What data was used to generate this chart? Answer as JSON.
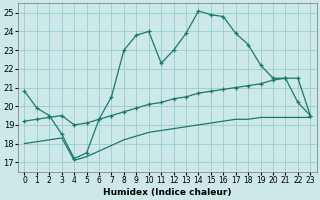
{
  "xlabel": "Humidex (Indice chaleur)",
  "bg_color": "#cce8e8",
  "grid_color": "#99cccc",
  "line_color": "#1a7a6a",
  "xlim": [
    -0.5,
    23.5
  ],
  "ylim": [
    16.5,
    25.5
  ],
  "xticks": [
    0,
    1,
    2,
    3,
    4,
    5,
    6,
    7,
    8,
    9,
    10,
    11,
    12,
    13,
    14,
    15,
    16,
    17,
    18,
    19,
    20,
    21,
    22,
    23
  ],
  "yticks": [
    17,
    18,
    19,
    20,
    21,
    22,
    23,
    24,
    25
  ],
  "line1_x": [
    0,
    1,
    2,
    3,
    4,
    5,
    6,
    7,
    8,
    9,
    10,
    11,
    12,
    13,
    14,
    15,
    16,
    17,
    18,
    19,
    20,
    21,
    22,
    23
  ],
  "line1_y": [
    20.8,
    19.9,
    19.5,
    18.5,
    17.2,
    17.5,
    19.3,
    20.5,
    23.0,
    23.8,
    24.0,
    22.3,
    23.0,
    23.9,
    25.1,
    24.9,
    24.8,
    23.9,
    23.3,
    22.2,
    21.5,
    21.5,
    20.2,
    19.5
  ],
  "line2_x": [
    0,
    1,
    2,
    3,
    4,
    5,
    6,
    7,
    8,
    9,
    10,
    11,
    12,
    13,
    14,
    15,
    16,
    17,
    18,
    19,
    20,
    21,
    22,
    23
  ],
  "line2_y": [
    19.2,
    19.3,
    19.4,
    19.5,
    19.0,
    19.1,
    19.3,
    19.5,
    19.7,
    19.9,
    20.1,
    20.2,
    20.4,
    20.5,
    20.7,
    20.8,
    20.9,
    21.0,
    21.1,
    21.2,
    21.4,
    21.5,
    21.5,
    19.5
  ],
  "line3_x": [
    0,
    1,
    2,
    3,
    4,
    5,
    6,
    7,
    8,
    9,
    10,
    11,
    12,
    13,
    14,
    15,
    16,
    17,
    18,
    19,
    20,
    21,
    22,
    23
  ],
  "line3_y": [
    18.0,
    18.1,
    18.2,
    18.3,
    17.1,
    17.3,
    17.6,
    17.9,
    18.2,
    18.4,
    18.6,
    18.7,
    18.8,
    18.9,
    19.0,
    19.1,
    19.2,
    19.3,
    19.3,
    19.4,
    19.4,
    19.4,
    19.4,
    19.4
  ]
}
